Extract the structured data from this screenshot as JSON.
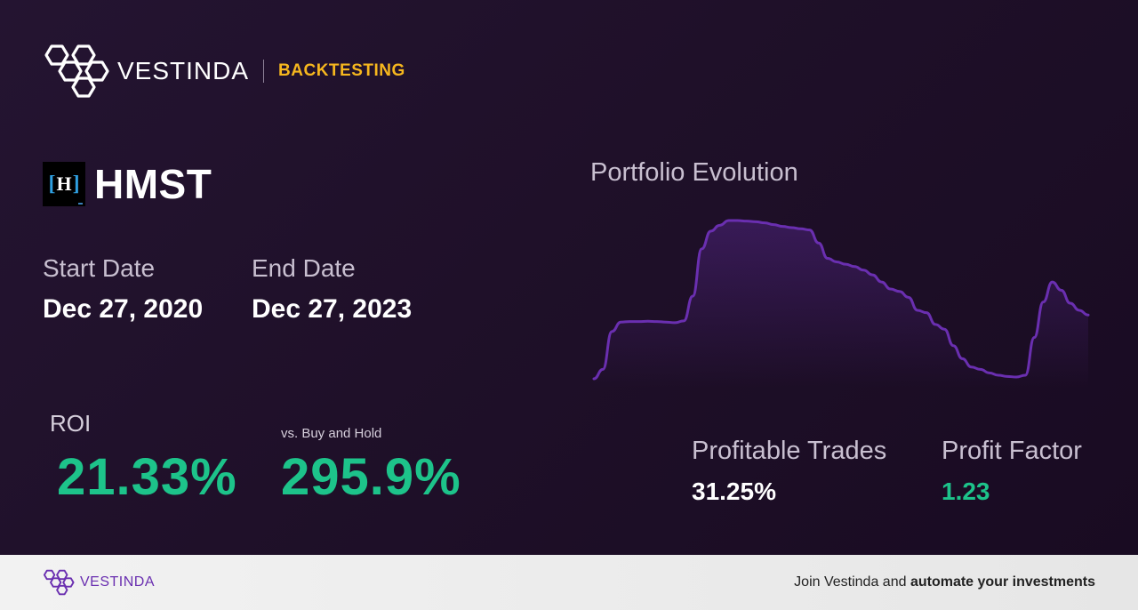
{
  "brand": {
    "name": "VESTINDA",
    "tag": "BACKTESTING",
    "accent": "#f6b71e"
  },
  "ticker": {
    "symbol": "HMST",
    "logo_letter": "H"
  },
  "dates": {
    "start_label": "Start Date",
    "start_value": "Dec 27, 2020",
    "end_label": "End Date",
    "end_value": "Dec 27, 2023"
  },
  "metrics": {
    "roi_label": "ROI",
    "roi_value": "21.33%",
    "bh_label": "vs. Buy and Hold",
    "bh_value": "295.9%",
    "pt_label": "Profitable Trades",
    "pt_value": "31.25%",
    "pf_label": "Profit Factor",
    "pf_value": "1.23",
    "positive_color": "#1dc38a"
  },
  "chart_title": "Portfolio Evolution",
  "chart_data": {
    "type": "area",
    "title": "Portfolio Evolution",
    "line_color": "#6a2fb0",
    "x": [
      0,
      1,
      2,
      3,
      4,
      5,
      6,
      7,
      8,
      9,
      10,
      11,
      12,
      13,
      14,
      15,
      16,
      17,
      18,
      19,
      20,
      21,
      22,
      23,
      24,
      25,
      26,
      27,
      28,
      29,
      30,
      31,
      32,
      33,
      34,
      35,
      36,
      37,
      38,
      39,
      40,
      41,
      42,
      43,
      44,
      45,
      46,
      47,
      48,
      49,
      50,
      51,
      52,
      53,
      54,
      55
    ],
    "y": [
      0,
      8,
      40,
      48,
      48.5,
      48.5,
      48.7,
      48.5,
      48,
      47.5,
      49,
      70,
      110,
      125,
      130,
      134,
      134,
      133.5,
      133,
      132,
      130.5,
      129,
      128,
      127,
      126,
      115,
      102,
      99,
      97,
      95,
      92,
      88,
      82,
      76,
      74,
      69,
      58,
      56,
      46,
      42,
      28,
      17,
      10,
      8,
      5,
      3,
      2,
      1.5,
      3,
      35,
      65,
      82,
      75,
      64,
      58,
      54
    ],
    "note_unit": "relative"
  },
  "footer": {
    "brand": "VESTINDA",
    "cta_prefix": "Join Vestinda and ",
    "cta_bold": "automate your investments"
  }
}
